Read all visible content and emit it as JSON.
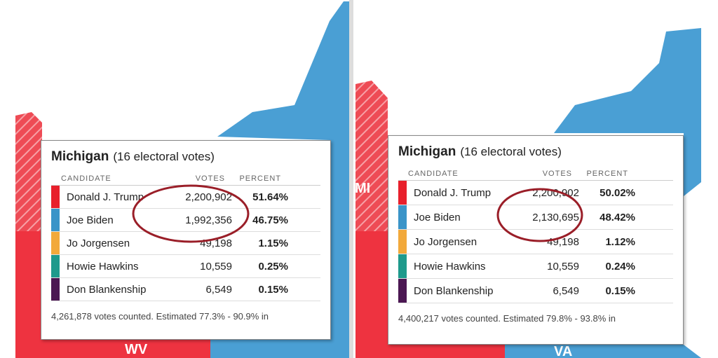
{
  "map_labels": {
    "left": [
      "WV"
    ],
    "right": [
      "MI",
      "VA"
    ]
  },
  "panels": [
    {
      "title": "Michigan",
      "subtitle": "(16 electoral votes)",
      "headers": [
        "CANDIDATE",
        "VOTES",
        "PERCENT"
      ],
      "rows": [
        {
          "name": "Donald J. Trump",
          "votes": "2,200,902",
          "percent": "51.64%",
          "color": "#e8202c"
        },
        {
          "name": "Joe Biden",
          "votes": "1,992,356",
          "percent": "46.75%",
          "color": "#3a94c8"
        },
        {
          "name": "Jo Jorgensen",
          "votes": "49,198",
          "percent": "1.15%",
          "color": "#f2a93b"
        },
        {
          "name": "Howie Hawkins",
          "votes": "10,559",
          "percent": "0.25%",
          "color": "#1e9a8c"
        },
        {
          "name": "Don Blankenship",
          "votes": "6,549",
          "percent": "0.15%",
          "color": "#4b1752"
        }
      ],
      "footer": "4,261,878 votes counted. Estimated 77.3% - 90.9% in"
    },
    {
      "title": "Michigan",
      "subtitle": "(16 electoral votes)",
      "headers": [
        "CANDIDATE",
        "VOTES",
        "PERCENT"
      ],
      "rows": [
        {
          "name": "Donald J. Trump",
          "votes": "2,200,902",
          "percent": "50.02%",
          "color": "#e8202c"
        },
        {
          "name": "Joe Biden",
          "votes": "2,130,695",
          "percent": "48.42%",
          "color": "#3a94c8"
        },
        {
          "name": "Jo Jorgensen",
          "votes": "49,198",
          "percent": "1.12%",
          "color": "#f2a93b"
        },
        {
          "name": "Howie Hawkins",
          "votes": "10,559",
          "percent": "0.24%",
          "color": "#1e9a8c"
        },
        {
          "name": "Don Blankenship",
          "votes": "6,549",
          "percent": "0.15%",
          "color": "#4b1752"
        }
      ],
      "footer": "4,400,217 votes counted. Estimated 79.8% - 93.8% in"
    }
  ]
}
